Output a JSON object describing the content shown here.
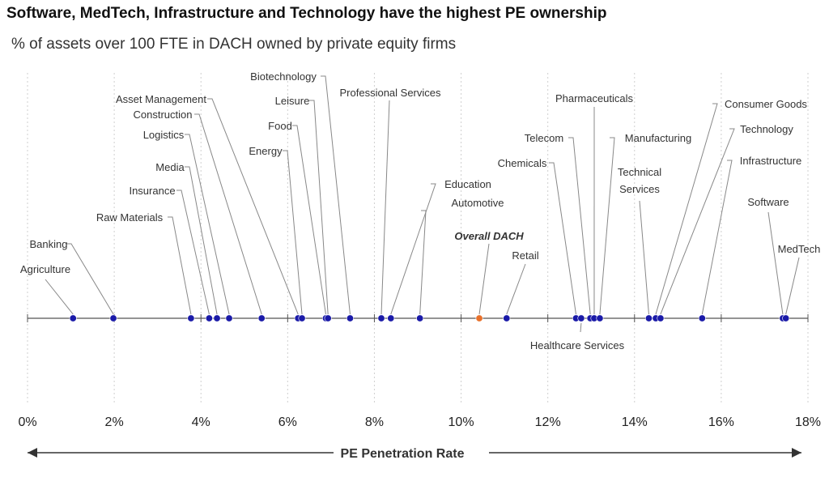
{
  "chart_data": {
    "type": "scatter",
    "title": "Software, MedTech, Infrastructure and Technology have the highest PE ownership",
    "subtitle": "% of assets over 100 FTE in DACH owned by private equity firms",
    "xlabel": "PE Penetration Rate",
    "xlim": [
      0,
      18
    ],
    "x_ticks": [
      "0%",
      "2%",
      "4%",
      "6%",
      "8%",
      "10%",
      "12%",
      "14%",
      "16%",
      "18%"
    ],
    "grid": "vertical dotted",
    "colors": {
      "sector": "#1a1aa8",
      "overall": "#e8702a"
    },
    "points": [
      {
        "name": "Agriculture",
        "x": 1.05
      },
      {
        "name": "Banking",
        "x": 1.98
      },
      {
        "name": "Raw Materials",
        "x": 3.77
      },
      {
        "name": "Insurance",
        "x": 4.19
      },
      {
        "name": "Media",
        "x": 4.37
      },
      {
        "name": "Logistics",
        "x": 4.65
      },
      {
        "name": "Construction",
        "x": 5.4
      },
      {
        "name": "Asset Management",
        "x": 6.24
      },
      {
        "name": "Energy",
        "x": 6.33
      },
      {
        "name": "Food",
        "x": 6.88
      },
      {
        "name": "Leisure",
        "x": 6.93
      },
      {
        "name": "Biotechnology",
        "x": 7.44
      },
      {
        "name": "Professional Services",
        "x": 8.16
      },
      {
        "name": "Education",
        "x": 8.38
      },
      {
        "name": "Automotive",
        "x": 9.05
      },
      {
        "name": "Overall DACH",
        "x": 10.42,
        "overall": true
      },
      {
        "name": "Retail",
        "x": 11.05
      },
      {
        "name": "Chemicals",
        "x": 12.65
      },
      {
        "name": "Healthcare Services",
        "x": 12.77
      },
      {
        "name": "Telecom",
        "x": 12.98
      },
      {
        "name": "Pharmaceuticals",
        "x": 13.07
      },
      {
        "name": "Manufacturing",
        "x": 13.2
      },
      {
        "name": "Technical Services",
        "x": 14.33
      },
      {
        "name": "Consumer Goods",
        "x": 14.49
      },
      {
        "name": "Technology",
        "x": 14.6
      },
      {
        "name": "Infrastructure",
        "x": 15.56
      },
      {
        "name": "Software",
        "x": 17.42
      },
      {
        "name": "MedTech",
        "x": 17.49
      }
    ]
  }
}
